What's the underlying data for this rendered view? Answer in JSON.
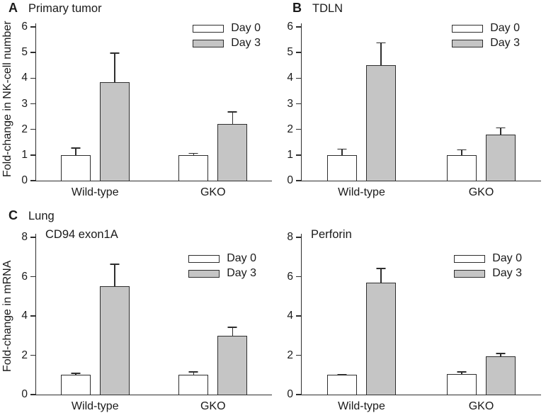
{
  "figure": {
    "background": "#ffffff",
    "axis_color": "#2e2e2e",
    "text_color": "#1a1a1a"
  },
  "chart_data": [
    {
      "type": "bar",
      "panel_letter": "A",
      "title": "Primary tumor",
      "subtitle": "",
      "ylabel": "Fold-change in NK-cell number",
      "xlabel": "",
      "ylim": [
        0,
        6
      ],
      "yticks": [
        0,
        1,
        2,
        3,
        4,
        5,
        6
      ],
      "categories": [
        "Wild-type",
        "GKO"
      ],
      "series": [
        {
          "name": "Day 0",
          "fill": "#ffffff",
          "values": [
            1.0,
            1.0
          ],
          "errors_up": [
            0.3,
            0.08
          ]
        },
        {
          "name": "Day 3",
          "fill": "#c5c5c5",
          "values": [
            3.85,
            2.2
          ],
          "errors_up": [
            1.15,
            0.5
          ]
        }
      ],
      "grid": false,
      "legend_position": "top-right"
    },
    {
      "type": "bar",
      "panel_letter": "B",
      "title": "TDLN",
      "subtitle": "",
      "ylabel": "",
      "xlabel": "",
      "ylim": [
        0,
        6
      ],
      "yticks": [
        0,
        1,
        2,
        3,
        4,
        5,
        6
      ],
      "categories": [
        "Wild-type",
        "GKO"
      ],
      "series": [
        {
          "name": "Day 0",
          "fill": "#ffffff",
          "values": [
            1.0,
            1.0
          ],
          "errors_up": [
            0.25,
            0.22
          ]
        },
        {
          "name": "Day 3",
          "fill": "#c5c5c5",
          "values": [
            4.5,
            1.8
          ],
          "errors_up": [
            0.9,
            0.28
          ]
        }
      ],
      "grid": false,
      "legend_position": "top-right"
    },
    {
      "type": "bar",
      "panel_letter": "C",
      "title": "Lung",
      "subtitle": "CD94 exon1A",
      "ylabel": "Fold-change in mRNA",
      "xlabel": "",
      "ylim": [
        0,
        8
      ],
      "yticks": [
        0,
        2,
        4,
        6,
        8
      ],
      "categories": [
        "Wild-type",
        "GKO"
      ],
      "series": [
        {
          "name": "Day 0",
          "fill": "#ffffff",
          "values": [
            1.0,
            1.0
          ],
          "errors_up": [
            0.1,
            0.18
          ]
        },
        {
          "name": "Day 3",
          "fill": "#c5c5c5",
          "values": [
            5.5,
            3.0
          ],
          "errors_up": [
            1.15,
            0.45
          ]
        }
      ],
      "grid": false,
      "legend_position": "top-right"
    },
    {
      "type": "bar",
      "panel_letter": "",
      "title": "",
      "subtitle": "Perforin",
      "ylabel": "",
      "xlabel": "",
      "ylim": [
        0,
        8
      ],
      "yticks": [
        0,
        2,
        4,
        6,
        8
      ],
      "categories": [
        "Wild-type",
        "GKO"
      ],
      "series": [
        {
          "name": "Day 0",
          "fill": "#ffffff",
          "values": [
            1.0,
            1.05
          ],
          "errors_up": [
            0.05,
            0.13
          ]
        },
        {
          "name": "Day 3",
          "fill": "#c5c5c5",
          "values": [
            5.7,
            1.95
          ],
          "errors_up": [
            0.75,
            0.17
          ]
        }
      ],
      "grid": false,
      "legend_position": "top-right"
    }
  ]
}
